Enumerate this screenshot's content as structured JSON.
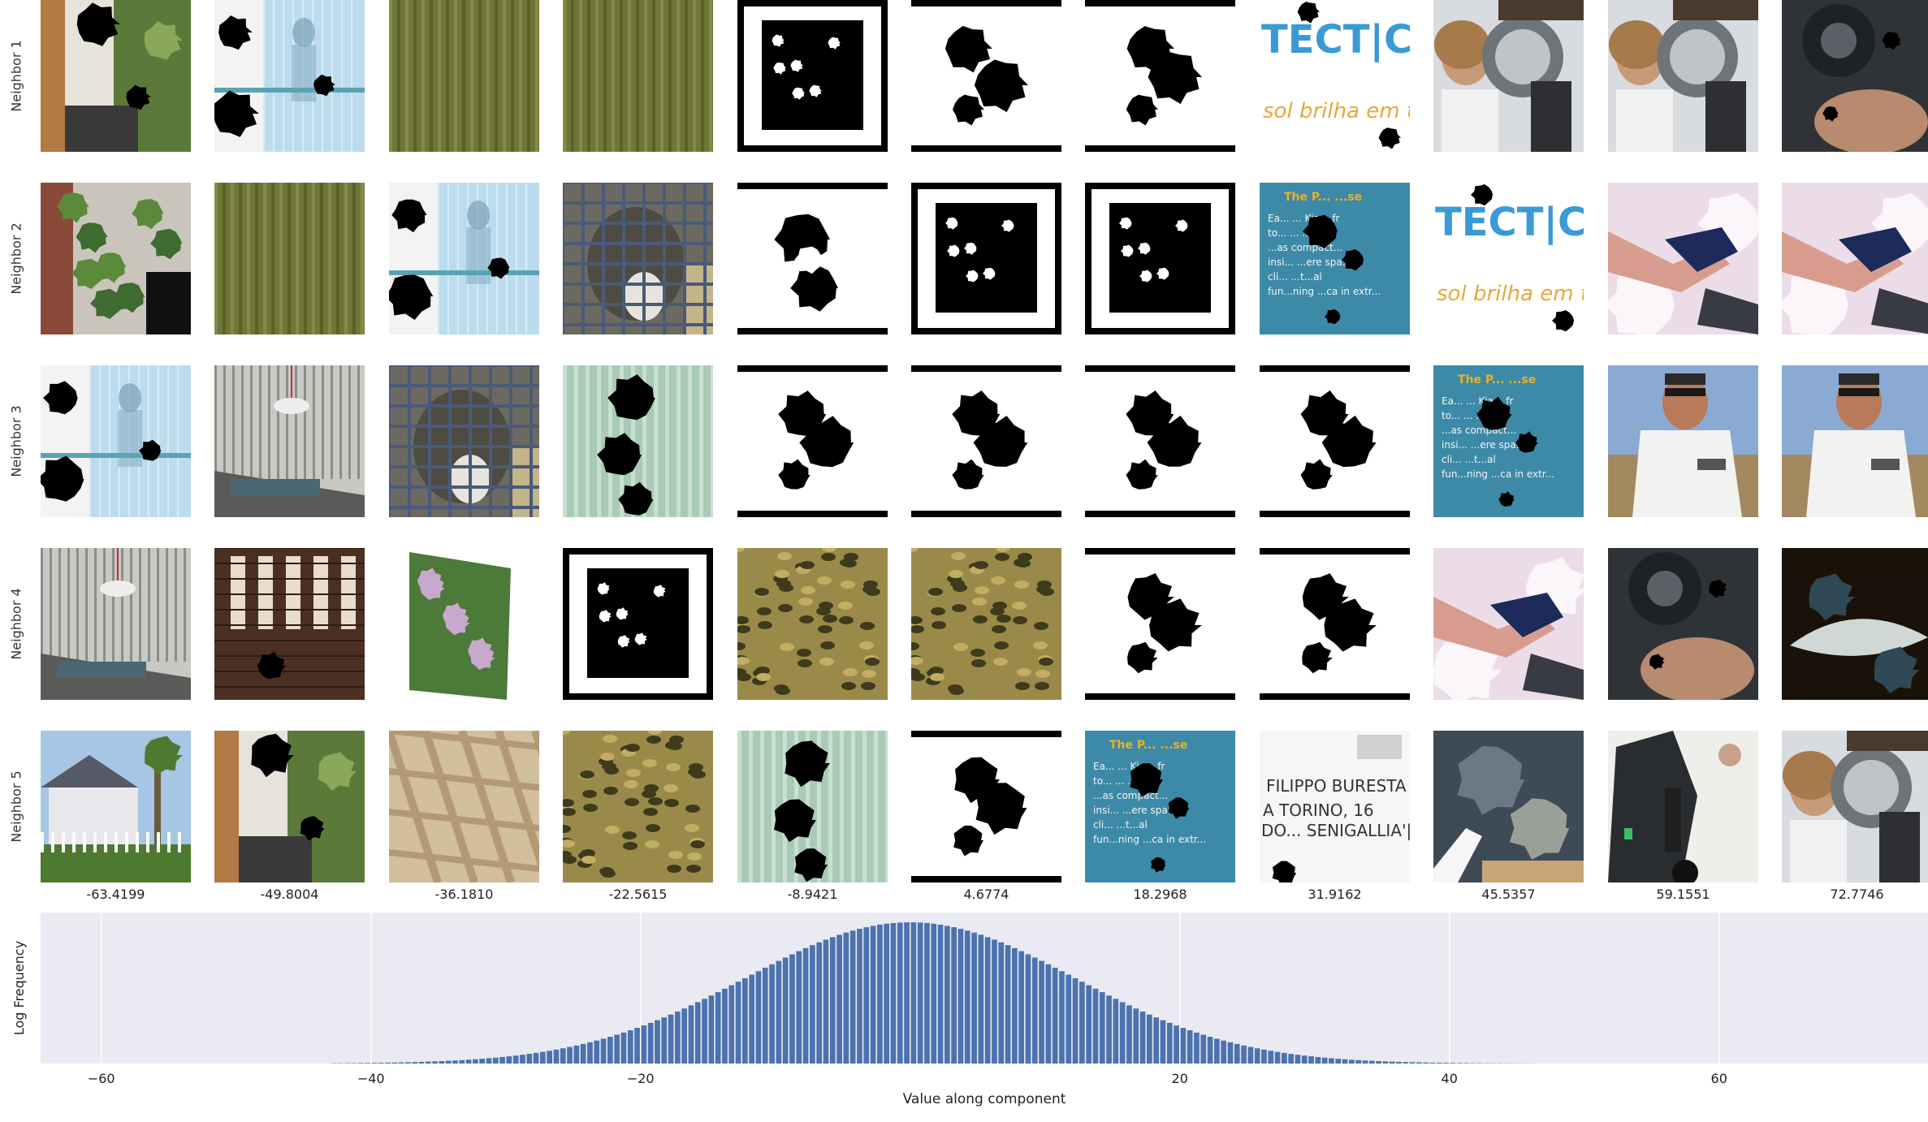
{
  "rows": [
    "Neighbor 1",
    "Neighbor 2",
    "Neighbor 3",
    "Neighbor 4",
    "Neighbor 5"
  ],
  "column_values": [
    "-63.4199",
    "-49.8004",
    "-36.1810",
    "-22.5615",
    "-8.9421",
    "4.6774",
    "18.2968",
    "31.9162",
    "45.5357",
    "59.1551",
    "72.7746"
  ],
  "tile_text": {
    "tect": "TECT|C",
    "tect_sub": "sol brilha em t",
    "book_title": "The P... ...se",
    "book_body": [
      "Ea... ... Kia... fr",
      "to... ... ...",
      "...as compact...",
      "insi... ...ere spa...",
      "cli... ...t...al",
      "fun...ning ...ca in extr..."
    ],
    "hand_1": "FILIPPO BURESTA",
    "hand_2": "A TORINO, 16",
    "hand_3": "DO... SENIGALLIA'|"
  },
  "palette": {
    "hist_bg": "#eaeaf2",
    "bar": "#4c72b0",
    "grid": "#ffffff",
    "text": "#222222"
  },
  "chart_data": {
    "type": "bar",
    "title": "",
    "xlabel": "Value along component",
    "ylabel": "Log Frequency",
    "xlim": [
      -64.5,
      75.5
    ],
    "xticks": [
      -60,
      -40,
      -20,
      20,
      40,
      60
    ],
    "yticks": [],
    "grid": true,
    "legend": "none",
    "bins": {
      "start": -43,
      "end": 46,
      "width": 0.5,
      "peak_x": 0,
      "sigma": 12.2,
      "relative_heights": "gaussian-shaped in log frequency; peak at 0, falls to ~0 near -43 and +46"
    }
  }
}
